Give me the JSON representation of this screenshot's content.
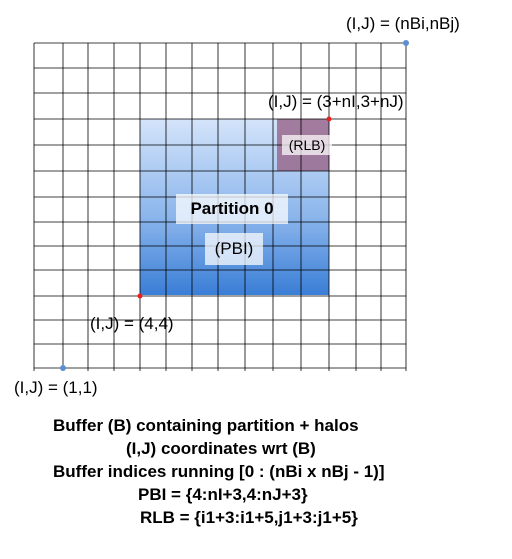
{
  "labels": {
    "top_right": "(I,J) = (nBi,nBj)",
    "rlb_corner": "(I,J) = (3+nI,3+nJ)",
    "partition_corner": "(I,J) = (4,4)",
    "origin": "(I,J) = (1,1)"
  },
  "regions": {
    "rlb_tag": "(RLB)",
    "partition_title": "Partition 0",
    "pbi_tag": "(PBI)"
  },
  "caption": {
    "line1": "Buffer (B) containing partition + halos",
    "line2": "(I,J) coordinates wrt (B)",
    "line3": "Buffer indices running [0 : (nBi x nBj - 1)]",
    "line4": "PBI = {4:nI+3,4:nJ+3}",
    "line5": "RLB = {i1+3:i1+5,j1+3:j1+5}"
  },
  "colors": {
    "grid": "#000000",
    "partition_top": "#cfe0f8",
    "partition_bottom": "#3b7fd4",
    "rlb": "#9a6a8e",
    "corner_dot_red": "#e8201e",
    "corner_dot_blue": "#5b8fd0"
  }
}
